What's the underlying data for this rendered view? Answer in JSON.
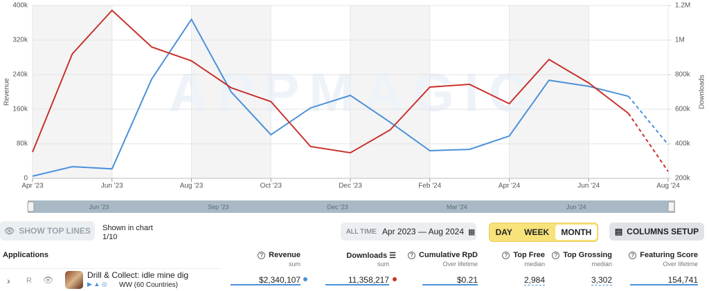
{
  "chart_data": {
    "type": "line",
    "y_label": "Revenue",
    "y2_label": "Downloads",
    "watermark": "APPMAGIC",
    "categories": [
      "Apr '23",
      null,
      "Jun '23",
      null,
      "Aug '23",
      null,
      "Oct '23",
      null,
      "Dec '23",
      null,
      "Feb '24",
      null,
      "Apr '24",
      null,
      "Jun '24",
      null,
      "Aug '24"
    ],
    "series": [
      {
        "color": "#4a90d9",
        "axis": "y",
        "values": [
          5000,
          27000,
          22000,
          230000,
          368000,
          200000,
          101000,
          163000,
          192000,
          130000,
          64000,
          67000,
          98000,
          227000,
          213000,
          190000,
          78000
        ]
      },
      {
        "color": "#c8312b",
        "axis": "y2",
        "values": [
          352000,
          920000,
          1172000,
          960000,
          880000,
          724000,
          644000,
          384000,
          348000,
          480000,
          728000,
          744000,
          632000,
          888000,
          752000,
          576000,
          240000
        ]
      }
    ],
    "dashed_last_segment": true,
    "ylim": [
      0,
      400000
    ],
    "yticks": [
      0,
      {
        "value": 80000,
        "label": "80k"
      },
      {
        "value": 160000,
        "label": "160k"
      },
      {
        "value": 240000,
        "label": "240k"
      },
      {
        "value": 320000,
        "label": "320k"
      },
      {
        "value": 400000,
        "label": "400k"
      }
    ],
    "y2lim": [
      200000,
      1200000
    ],
    "y2ticks": [
      {
        "value": 200000,
        "label": "200k"
      },
      {
        "value": 400000,
        "label": "400k"
      },
      {
        "value": 600000,
        "label": "600k"
      },
      {
        "value": 800000,
        "label": "800k"
      },
      {
        "value": 1000000,
        "label": "1M"
      },
      {
        "value": 1200000,
        "label": "1.2M"
      }
    ],
    "grid": true
  },
  "navigator": {
    "labels": [
      "Jun '23",
      "Sep '23",
      "Dec '23",
      "Mar '24",
      "Jun '24"
    ]
  },
  "controls": {
    "show_top_lines": "SHOW TOP LINES",
    "shown_in_chart": "Shown in chart",
    "shown_count": "1/10",
    "period_label": "ALL TIME",
    "period": "Apr 2023 — Aug 2024",
    "granularity": [
      "DAY",
      "WEEK",
      "MONTH"
    ],
    "selected_granularity": 2,
    "columns_setup": "COLUMNS SETUP"
  },
  "table": {
    "columns": [
      {
        "title": "Applications"
      },
      {
        "title": "Revenue",
        "sub": "sum"
      },
      {
        "title": "Downloads",
        "sub": "sum"
      },
      {
        "title": "Cumulative RpD",
        "sub": "Over lifetime"
      },
      {
        "title": "Top Free",
        "sub": "median"
      },
      {
        "title": "Top Grossing",
        "sub": "median"
      },
      {
        "title": "Featuring Score",
        "sub": "Over lifetime"
      }
    ],
    "rows": [
      {
        "rank": "R",
        "name": "Drill & Collect: idle mine dig",
        "region": "WW (60 Countries)",
        "cells": [
          "$2,340,107",
          "11,358,217",
          "$0.21",
          "2,984",
          "3,302",
          "154,741"
        ]
      }
    ]
  }
}
